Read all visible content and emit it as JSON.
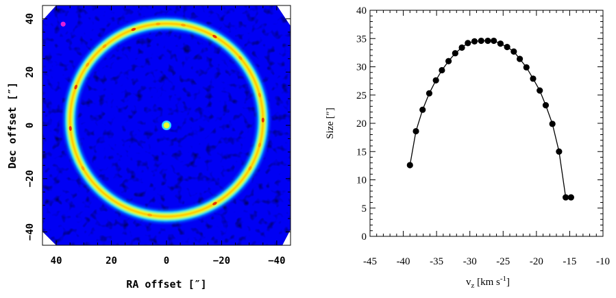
{
  "chart_data": [
    {
      "type": "heatmap",
      "xlabel": "RA offset  [″]",
      "ylabel": "Dec offset  [″]",
      "xlim": [
        45,
        -45
      ],
      "ylim": [
        -45,
        45
      ],
      "xticks": [
        40,
        20,
        0,
        -20,
        -40
      ],
      "yticks": [
        -40,
        -20,
        0,
        20,
        40
      ],
      "xtick_labels": [
        "40",
        "20",
        "0",
        "−20",
        "−40"
      ],
      "ytick_labels": [
        "−40",
        "−20",
        "0",
        "20",
        "40"
      ],
      "features": {
        "ring": {
          "center": [
            0,
            2
          ],
          "radius": 35
        },
        "central_source": [
          0,
          0
        ],
        "beam_marker": [
          37.5,
          38
        ]
      },
      "colormap": [
        "#00003a",
        "#0000c8",
        "#0064ff",
        "#00e6ff",
        "#9bff5a",
        "#ffff00",
        "#ff9600",
        "#e10000"
      ]
    },
    {
      "type": "scatter",
      "xlabel": "v",
      "xlabel_sub": "z",
      "xlabel_unit": " [km s",
      "xlabel_sup": "-1",
      "xlabel_close": "]",
      "ylabel": "Size [″]",
      "xlim": [
        -45,
        -10
      ],
      "ylim": [
        0,
        40
      ],
      "xticks": [
        -45,
        -40,
        -35,
        -30,
        -25,
        -20,
        -15,
        -10
      ],
      "yticks": [
        0,
        5,
        10,
        15,
        20,
        25,
        30,
        35,
        40
      ],
      "x": [
        -39,
        -38.1,
        -37.1,
        -36.1,
        -35.1,
        -34.2,
        -33.2,
        -32.2,
        -31.2,
        -30.3,
        -29.3,
        -28.3,
        -27.3,
        -26.4,
        -25.4,
        -24.4,
        -23.4,
        -22.5,
        -21.5,
        -20.5,
        -19.5,
        -18.6,
        -17.6,
        -16.6,
        -15.6,
        -14.8
      ],
      "y": [
        12.6,
        18.6,
        22.4,
        25.3,
        27.6,
        29.4,
        31.0,
        32.4,
        33.4,
        34.2,
        34.5,
        34.6,
        34.6,
        34.6,
        34.1,
        33.5,
        32.7,
        31.4,
        29.9,
        27.9,
        25.8,
        23.2,
        19.9,
        15.0,
        6.9,
        6.9
      ]
    }
  ]
}
